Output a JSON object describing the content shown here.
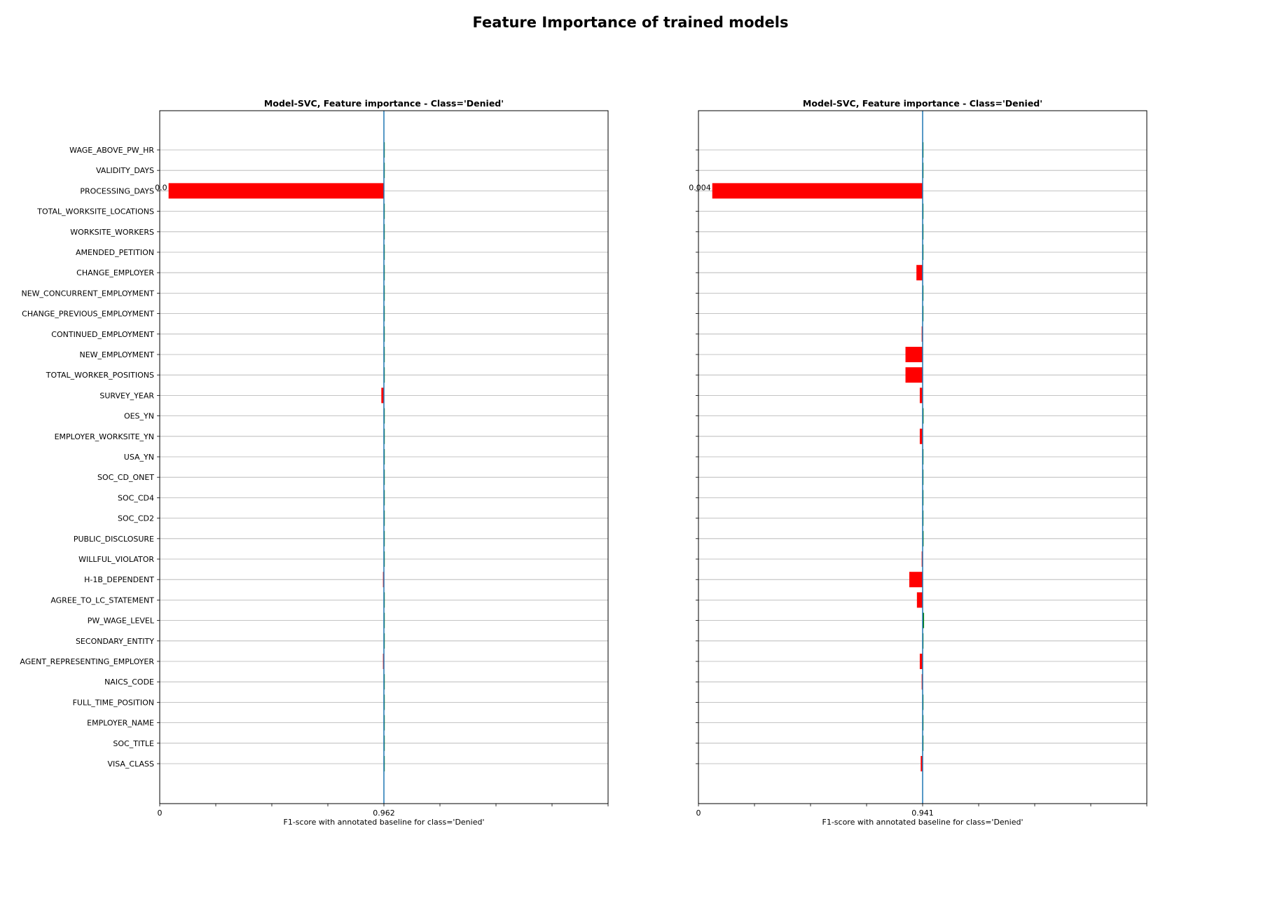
{
  "figure": {
    "title": "Feature Importance of trained models"
  },
  "chart_data": [
    {
      "type": "bar",
      "orientation": "horizontal",
      "title": "Model-SVC, Feature importance - Class='Denied'",
      "xlabel": "F1-score with annotated baseline for class='Denied'",
      "ylabel": "",
      "baseline": 0.962,
      "baseline_label": "0.962",
      "xlim": [
        0,
        1.924
      ],
      "xtick_labels": [
        "0",
        "0.962"
      ],
      "grid": "horizontal",
      "annotation": "0.0",
      "categories": [
        "WAGE_ABOVE_PW_HR",
        "VALIDITY_DAYS",
        "PROCESSING_DAYS",
        "TOTAL_WORKSITE_LOCATIONS",
        "WORKSITE_WORKERS",
        "AMENDED_PETITION",
        "CHANGE_EMPLOYER",
        "NEW_CONCURRENT_EMPLOYMENT",
        "CHANGE_PREVIOUS_EMPLOYMENT",
        "CONTINUED_EMPLOYMENT",
        "NEW_EMPLOYMENT",
        "TOTAL_WORKER_POSITIONS",
        "SURVEY_YEAR",
        "OES_YN",
        "EMPLOYER_WORKSITE_YN",
        "USA_YN",
        "SOC_CD_ONET",
        "SOC_CD4",
        "SOC_CD2",
        "PUBLIC_DISCLOSURE",
        "WILLFUL_VIOLATOR",
        "H-1B_DEPENDENT",
        "AGREE_TO_LC_STATEMENT",
        "PW_WAGE_LEVEL",
        "SECONDARY_ENTITY",
        "AGENT_REPRESENTING_EMPLOYER",
        "NAICS_CODE",
        "FULL_TIME_POSITION",
        "EMPLOYER_NAME",
        "SOC_TITLE",
        "VISA_CLASS"
      ],
      "values": [
        0.962,
        0.962,
        0.038,
        0.962,
        0.962,
        0.962,
        0.962,
        0.962,
        0.962,
        0.962,
        0.962,
        0.962,
        0.951,
        0.962,
        0.962,
        0.962,
        0.962,
        0.962,
        0.962,
        0.962,
        0.962,
        0.958,
        0.962,
        0.962,
        0.962,
        0.958,
        0.962,
        0.962,
        0.962,
        0.962,
        0.962
      ]
    },
    {
      "type": "bar",
      "orientation": "horizontal",
      "title": "Model-SVC, Feature importance - Class='Denied'",
      "xlabel": "F1-score with annotated baseline for class='Denied'",
      "ylabel": "",
      "baseline": 0.941,
      "baseline_label": "0.941",
      "xlim": [
        0,
        1.882
      ],
      "xtick_labels": [
        "0",
        "0.941"
      ],
      "grid": "horizontal",
      "annotation": "0.004",
      "categories": [
        "WAGE_ABOVE_PW_HR",
        "VALIDITY_DAYS",
        "PROCESSING_DAYS",
        "TOTAL_WORKSITE_LOCATIONS",
        "WORKSITE_WORKERS",
        "AMENDED_PETITION",
        "CHANGE_EMPLOYER",
        "NEW_CONCURRENT_EMPLOYMENT",
        "CHANGE_PREVIOUS_EMPLOYMENT",
        "CONTINUED_EMPLOYMENT",
        "NEW_EMPLOYMENT",
        "TOTAL_WORKER_POSITIONS",
        "SURVEY_YEAR",
        "OES_YN",
        "EMPLOYER_WORKSITE_YN",
        "USA_YN",
        "SOC_CD_ONET",
        "SOC_CD4",
        "SOC_CD2",
        "PUBLIC_DISCLOSURE",
        "WILLFUL_VIOLATOR",
        "H-1B_DEPENDENT",
        "AGREE_TO_LC_STATEMENT",
        "PW_WAGE_LEVEL",
        "SECONDARY_ENTITY",
        "AGENT_REPRESENTING_EMPLOYER",
        "NAICS_CODE",
        "FULL_TIME_POSITION",
        "EMPLOYER_NAME",
        "SOC_TITLE",
        "VISA_CLASS"
      ],
      "values": [
        0.941,
        0.944,
        0.058,
        0.941,
        0.941,
        0.941,
        0.915,
        0.941,
        0.941,
        0.937,
        0.869,
        0.869,
        0.929,
        0.945,
        0.929,
        0.941,
        0.941,
        0.941,
        0.941,
        0.945,
        0.937,
        0.885,
        0.917,
        0.947,
        0.941,
        0.929,
        0.937,
        0.941,
        0.941,
        0.941,
        0.933
      ]
    }
  ],
  "colors": {
    "decrease": "#ff0000",
    "increase": "#008000",
    "baseline": "#1f77b4",
    "grid": "#b0b0b0",
    "axes": "#000000"
  }
}
